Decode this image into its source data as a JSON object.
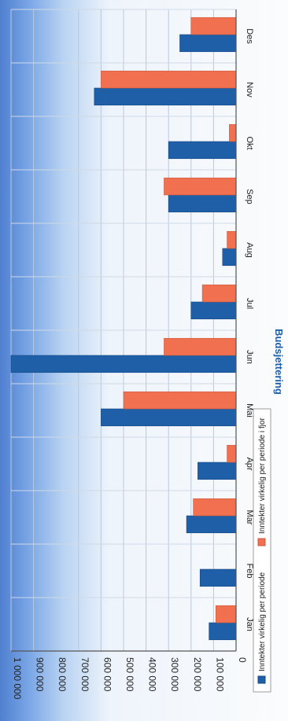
{
  "chart_data": {
    "type": "bar",
    "title": "Budsjettering",
    "categories": [
      "Jan",
      "Feb",
      "Mar",
      "Apr",
      "Mai",
      "Jun",
      "Jul",
      "Aug",
      "Sep",
      "Okt",
      "Nov",
      "Des"
    ],
    "series": [
      {
        "name": "Inntekter virkelig per periode",
        "values": [
          120000,
          160000,
          220000,
          170000,
          600000,
          1000000,
          200000,
          60000,
          300000,
          300000,
          630000,
          250000
        ]
      },
      {
        "name": "Inntekter virkelig per periode i fjor",
        "values": [
          90000,
          0,
          190000,
          40000,
          500000,
          320000,
          150000,
          40000,
          320000,
          30000,
          600000,
          200000
        ]
      }
    ],
    "ylim": [
      0,
      1000000
    ],
    "yticks": [
      "0",
      "100 000",
      "200 000",
      "300 000",
      "400 000",
      "500 000",
      "600 000",
      "700 000",
      "800 000",
      "900 000",
      "1 000 000"
    ],
    "grid": true,
    "legend": "bottom",
    "colors": {
      "series1": "#1f5fa8",
      "series2": "#f07050"
    }
  }
}
